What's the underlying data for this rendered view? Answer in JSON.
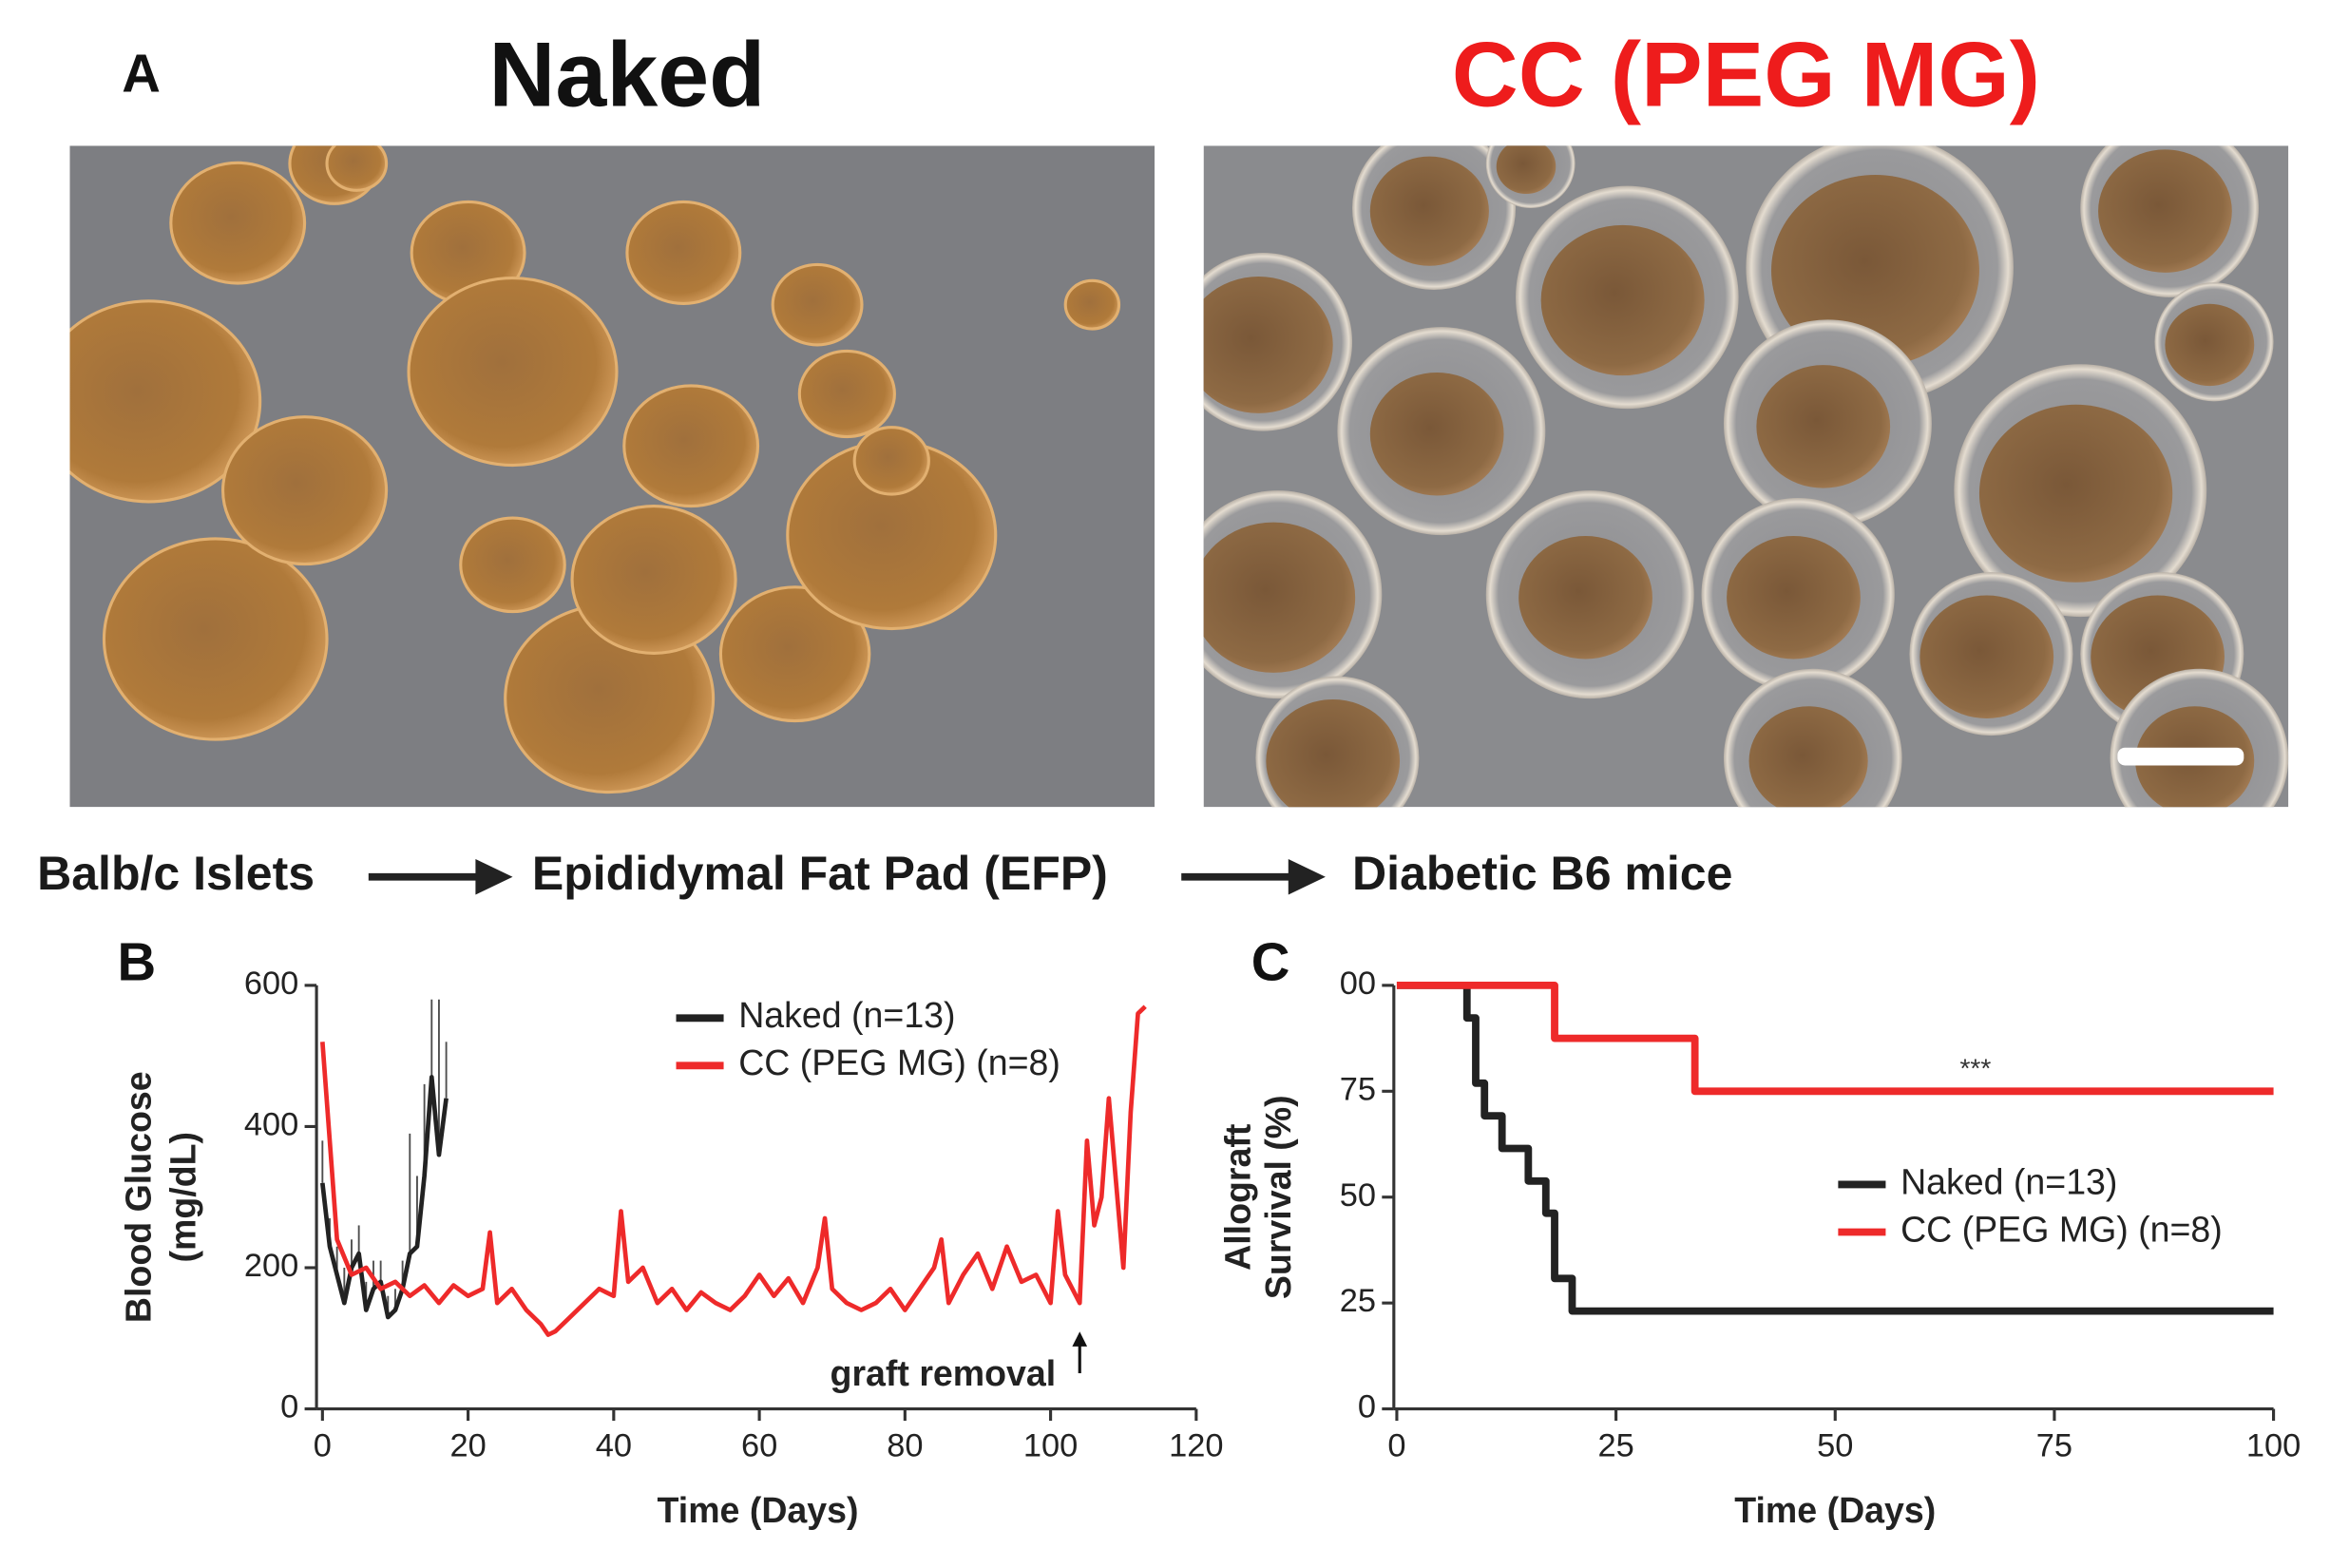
{
  "panel_labels": [
    "A",
    "B",
    "C"
  ],
  "images": [
    {
      "title": "Naked"
    },
    {
      "title": "CC (PEG MG)"
    }
  ],
  "flow": [
    "Balb/c Islets",
    "Epididymal Fat Pad (EFP)",
    "Diabetic B6 mice"
  ],
  "chart_data": [
    {
      "type": "line",
      "y_label": [
        "Blood Glucose",
        "(mg/dL)"
      ],
      "x_label": "Time (Days)",
      "xlim": [
        0,
        120
      ],
      "xticks": [
        0,
        20,
        40,
        60,
        80,
        100,
        120
      ],
      "ylim": [
        0,
        600
      ],
      "yticks": [
        0,
        200,
        400,
        600
      ],
      "legend": "upper right",
      "annotations": [
        {
          "text": "graft removal",
          "x": 104
        }
      ],
      "series": [
        {
          "name": "Naked (n=13)",
          "color": "#222222",
          "x": [
            0,
            1,
            2,
            3,
            4,
            5,
            6,
            7,
            8,
            9,
            10,
            11,
            12,
            13,
            14,
            15,
            16,
            17
          ],
          "values": [
            320,
            230,
            190,
            150,
            200,
            220,
            140,
            170,
            180,
            130,
            140,
            170,
            220,
            230,
            330,
            470,
            360,
            440
          ],
          "errors": [
            60,
            40,
            40,
            50,
            40,
            40,
            40,
            40,
            30,
            30,
            30,
            40,
            170,
            100,
            130,
            110,
            220,
            80
          ]
        },
        {
          "name": "CC (PEG MG) (n=8)",
          "color": "#ee2a2a",
          "x": [
            0,
            2,
            4,
            6,
            8,
            10,
            12,
            14,
            16,
            18,
            20,
            22,
            23,
            24,
            26,
            28,
            30,
            31,
            32,
            34,
            36,
            38,
            40,
            41,
            42,
            44,
            46,
            48,
            50,
            52,
            54,
            56,
            58,
            60,
            62,
            64,
            66,
            68,
            69,
            70,
            72,
            74,
            76,
            78,
            80,
            82,
            84,
            85,
            86,
            88,
            90,
            92,
            94,
            96,
            98,
            100,
            101,
            102,
            104,
            105,
            106,
            107,
            108,
            109,
            110,
            111,
            112,
            113
          ],
          "values": [
            520,
            240,
            190,
            200,
            170,
            180,
            160,
            175,
            150,
            175,
            160,
            170,
            250,
            150,
            170,
            140,
            120,
            105,
            110,
            130,
            150,
            170,
            160,
            280,
            180,
            200,
            150,
            170,
            140,
            165,
            150,
            140,
            160,
            190,
            160,
            185,
            150,
            200,
            270,
            170,
            150,
            140,
            150,
            170,
            140,
            170,
            200,
            240,
            150,
            190,
            220,
            170,
            230,
            180,
            190,
            150,
            280,
            190,
            150,
            380,
            260,
            300,
            440,
            320,
            200,
            420,
            560,
            570
          ]
        }
      ]
    },
    {
      "type": "step",
      "y_label": [
        "Allograft",
        "Survival (%)"
      ],
      "x_label": "Time (Days)",
      "xlim": [
        0,
        100
      ],
      "xticks": [
        0,
        25,
        50,
        75,
        100
      ],
      "ylim": [
        0,
        100
      ],
      "yticks": [
        0,
        25,
        50,
        75,
        {
          "value": 100,
          "label": "00"
        }
      ],
      "legend": "center right",
      "annotations": [
        {
          "text": "***",
          "x": 66,
          "y": 80
        }
      ],
      "series": [
        {
          "name": "Naked (n=13)",
          "color": "#222222",
          "x": [
            0,
            8,
            9,
            10,
            12,
            15,
            17,
            18,
            20,
            100
          ],
          "values": [
            100,
            92.3,
            76.9,
            69.2,
            61.5,
            53.8,
            46.2,
            30.8,
            23.1,
            23.1
          ]
        },
        {
          "name": "CC (PEG MG) (n=8)",
          "color": "#ee2a2a",
          "x": [
            0,
            18,
            34,
            100
          ],
          "values": [
            100,
            87.5,
            75,
            75
          ]
        }
      ]
    }
  ]
}
